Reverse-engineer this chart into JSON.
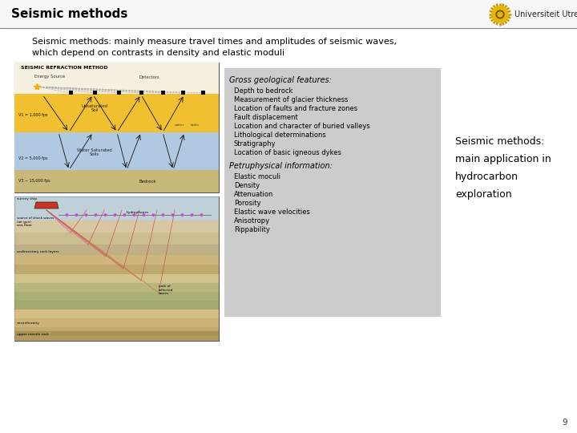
{
  "title": "Seismic methods",
  "subtitle_line1": "Seismic methods: mainly measure travel times and amplitudes of seismic waves,",
  "subtitle_line2": "which depend on contrasts in density and elastic moduli",
  "geo_title": "Gross geological features:",
  "geo_items": [
    "Depth to bedrock",
    "Measurement of glacier thickness",
    "Location of faults and fracture zones",
    "Fault displacement",
    "Location and character of buried valleys",
    "Lithological determinations",
    "Stratigraphy",
    "Location of basic igneous dykes"
  ],
  "petro_title": "Petruphysical information:",
  "petro_items": [
    "Elastic moculi",
    "Density",
    "Attenuation",
    "Porosity",
    "Elastic wave velocities",
    "Anisotropy",
    "Rippability"
  ],
  "side_text_line1": "Seismic methods:",
  "side_text_line2": "main application in",
  "side_text_line3": "hydrocarbon",
  "side_text_line4": "exploration",
  "page_number": "9",
  "bg_color": "#ffffff",
  "title_color": "#000000",
  "text_color": "#000000",
  "gray_box_color": "#cccccc",
  "univ_text": "Universiteit Utrecht"
}
